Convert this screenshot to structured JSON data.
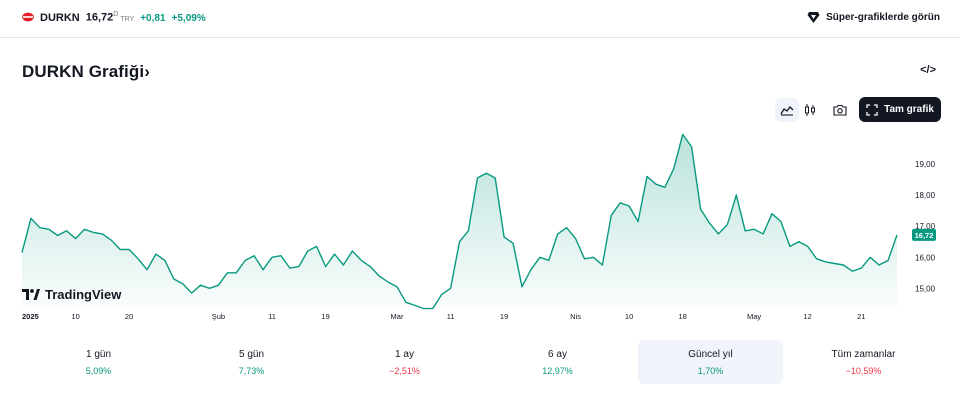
{
  "ticker": {
    "symbol": "DURKN",
    "price": "16,72",
    "price_superscript": "D",
    "currency": "TRY",
    "change_abs": "+0,81",
    "change_pct": "+5,09%"
  },
  "super_chart_link": "Süper-grafiklerde görün",
  "page_title": "DURKN Grafiği",
  "title_chevron": "›",
  "embed_icon_text": "</>",
  "toolbar": {
    "full_chart_label": "Tam grafik",
    "icons": [
      "area-chart-icon",
      "candles-icon",
      "camera-icon",
      "fullscreen-icon"
    ]
  },
  "brand": "TradingView",
  "colors": {
    "line": "#089981",
    "positive": "#089981",
    "negative": "#f23645",
    "last_price_badge": "#089981"
  },
  "chart_data": {
    "type": "area",
    "title": "",
    "xlabel": "",
    "ylabel": "",
    "ylim": [
      14.4,
      19.9
    ],
    "y_ticks": [
      "19,00",
      "18,00",
      "17,00",
      "16,00",
      "15,00"
    ],
    "y_tick_values": [
      19,
      18,
      17,
      16,
      15
    ],
    "last_price_label": "16,72",
    "x_tick_labels": [
      {
        "label": "2025",
        "idx": 0,
        "bold": true
      },
      {
        "label": "10",
        "idx": 6
      },
      {
        "label": "20",
        "idx": 12
      },
      {
        "label": "Şub",
        "idx": 22
      },
      {
        "label": "11",
        "idx": 28
      },
      {
        "label": "19",
        "idx": 34
      },
      {
        "label": "Mar",
        "idx": 42
      },
      {
        "label": "11",
        "idx": 48
      },
      {
        "label": "19",
        "idx": 54
      },
      {
        "label": "Nis",
        "idx": 62
      },
      {
        "label": "10",
        "idx": 68
      },
      {
        "label": "18",
        "idx": 74
      },
      {
        "label": "May",
        "idx": 82
      },
      {
        "label": "12",
        "idx": 88
      },
      {
        "label": "21",
        "idx": 94
      }
    ],
    "series": [
      {
        "values": [
          16.15,
          17.25,
          16.95,
          16.9,
          16.7,
          16.85,
          16.6,
          16.9,
          16.8,
          16.75,
          16.55,
          16.25,
          16.25,
          15.95,
          15.6,
          16.1,
          15.9,
          15.3,
          15.15,
          14.85,
          15.1,
          15.0,
          15.1,
          15.5,
          15.5,
          15.9,
          16.05,
          15.6,
          16.0,
          16.05,
          15.65,
          15.7,
          16.2,
          16.35,
          15.7,
          16.1,
          15.75,
          16.2,
          15.9,
          15.7,
          15.4,
          15.2,
          15.05,
          14.55,
          14.45,
          14.35,
          14.35,
          14.8,
          15.0,
          16.5,
          16.85,
          18.55,
          18.7,
          18.55,
          16.65,
          16.45,
          15.05,
          15.6,
          16.0,
          15.9,
          16.75,
          16.95,
          16.6,
          15.95,
          16.0,
          15.75,
          17.35,
          17.75,
          17.65,
          17.15,
          18.6,
          18.35,
          18.25,
          18.85,
          19.95,
          19.55,
          17.55,
          17.1,
          16.75,
          17.05,
          18.0,
          16.85,
          16.9,
          16.75,
          17.4,
          17.15,
          16.35,
          16.5,
          16.35,
          15.95,
          15.85,
          15.8,
          15.75,
          15.55,
          15.65,
          16.0,
          15.75,
          15.9,
          16.72
        ]
      }
    ]
  },
  "periods": [
    {
      "label": "1 gün",
      "value": "5,09%",
      "sign": "pos"
    },
    {
      "label": "5 gün",
      "value": "7,73%",
      "sign": "pos"
    },
    {
      "label": "1 ay",
      "value": "−2,51%",
      "sign": "neg"
    },
    {
      "label": "6 ay",
      "value": "12,97%",
      "sign": "pos"
    },
    {
      "label": "Güncel yıl",
      "value": "1,70%",
      "sign": "pos",
      "active": true
    },
    {
      "label": "Tüm zamanlar",
      "value": "−10,59%",
      "sign": "neg"
    }
  ]
}
